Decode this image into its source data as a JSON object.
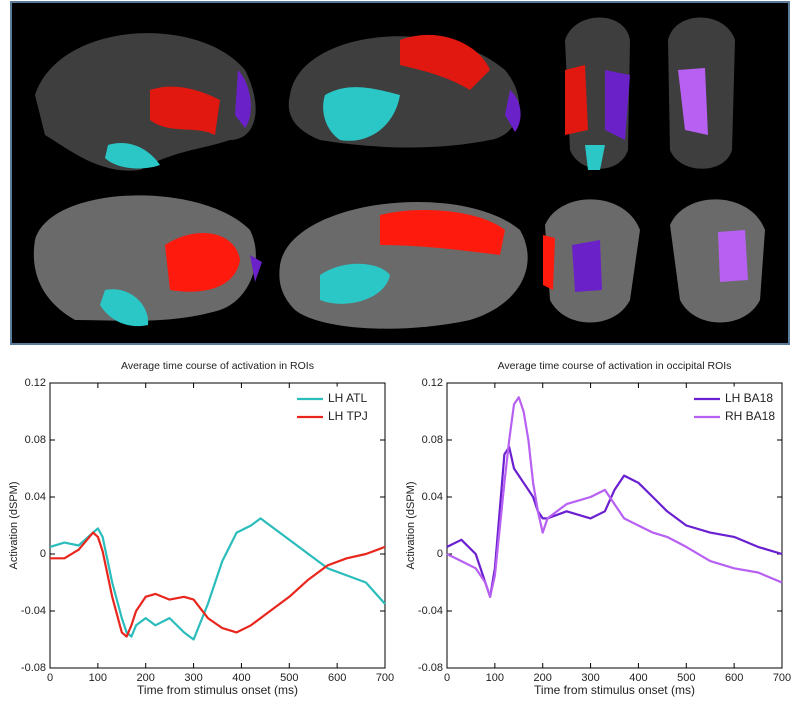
{
  "chart_data": [
    {
      "type": "line",
      "title": "Average time course of activation in ROIs",
      "x_label": "Time from stimulus onset (ms)",
      "y_label": "Activation (dSPM)",
      "x": [
        0,
        30,
        60,
        90,
        100,
        110,
        130,
        150,
        160,
        170,
        180,
        200,
        220,
        250,
        280,
        300,
        330,
        360,
        390,
        420,
        440,
        460,
        500,
        540,
        580,
        620,
        660,
        700
      ],
      "series": [
        {
          "name": "LH ATL",
          "color": "#2bbcbc",
          "values": [
            0.005,
            0.008,
            0.006,
            0.015,
            0.018,
            0.012,
            -0.02,
            -0.045,
            -0.055,
            -0.058,
            -0.05,
            -0.045,
            -0.05,
            -0.045,
            -0.055,
            -0.06,
            -0.035,
            -0.005,
            0.015,
            0.02,
            0.025,
            0.02,
            0.01,
            0,
            -0.01,
            -0.015,
            -0.02,
            -0.035
          ]
        },
        {
          "name": "LH TPJ",
          "color": "#e8261c",
          "values": [
            -0.003,
            -0.003,
            0.003,
            0.015,
            0.012,
            0.002,
            -0.03,
            -0.055,
            -0.058,
            -0.05,
            -0.04,
            -0.03,
            -0.028,
            -0.032,
            -0.03,
            -0.032,
            -0.045,
            -0.052,
            -0.055,
            -0.05,
            -0.045,
            -0.04,
            -0.03,
            -0.018,
            -0.008,
            -0.003,
            0,
            0.005
          ]
        }
      ],
      "xlim": [
        0,
        700
      ],
      "xticks": [
        0,
        100,
        200,
        300,
        400,
        500,
        600,
        700
      ],
      "ylim": [
        -0.08,
        0.12
      ],
      "yticks": [
        0.12,
        0.08,
        0.04,
        0,
        -0.04,
        -0.08
      ],
      "legend": "upper-right"
    },
    {
      "type": "line",
      "title": "Average time course of activation in occipital ROIs",
      "x_label": "Time from stimulus onset (ms)",
      "y_label": "Activation (dSPM)",
      "x": [
        0,
        30,
        60,
        80,
        90,
        100,
        120,
        130,
        140,
        150,
        160,
        170,
        180,
        190,
        200,
        210,
        250,
        300,
        330,
        350,
        370,
        400,
        430,
        460,
        500,
        550,
        600,
        650,
        700
      ],
      "series": [
        {
          "name": "LH BA18",
          "color": "#6a1fd0",
          "values": [
            0.005,
            0.01,
            0,
            -0.02,
            -0.03,
            -0.01,
            0.07,
            0.075,
            0.06,
            0.055,
            0.05,
            0.045,
            0.04,
            0.03,
            0.025,
            0.025,
            0.03,
            0.025,
            0.03,
            0.045,
            0.055,
            0.05,
            0.04,
            0.03,
            0.02,
            0.015,
            0.012,
            0.005,
            0
          ]
        },
        {
          "name": "RH BA18",
          "color": "#b760f2",
          "values": [
            0,
            -0.005,
            -0.01,
            -0.02,
            -0.03,
            -0.015,
            0.05,
            0.08,
            0.105,
            0.11,
            0.1,
            0.08,
            0.05,
            0.03,
            0.015,
            0.025,
            0.035,
            0.04,
            0.045,
            0.035,
            0.025,
            0.02,
            0.015,
            0.012,
            0.005,
            -0.005,
            -0.01,
            -0.013,
            -0.02
          ]
        }
      ],
      "xlim": [
        0,
        700
      ],
      "xticks": [
        0,
        100,
        200,
        300,
        400,
        500,
        600,
        700
      ],
      "ylim": [
        -0.08,
        0.12
      ],
      "yticks": [
        0.12,
        0.08,
        0.04,
        0,
        -0.04,
        -0.08
      ],
      "legend": "upper-right"
    }
  ]
}
